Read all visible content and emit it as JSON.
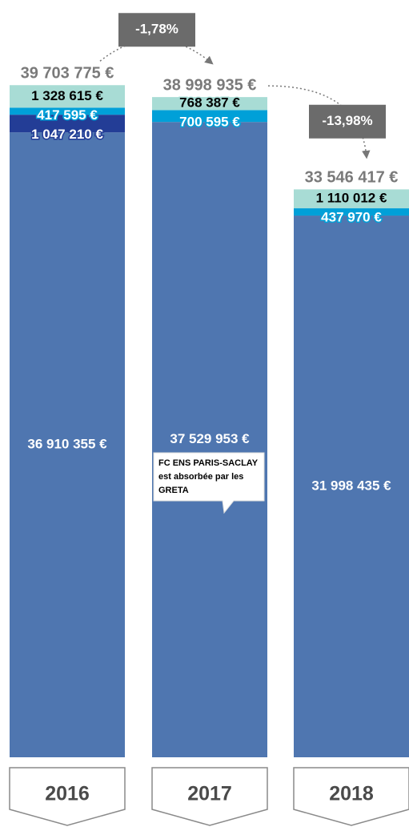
{
  "chart_data": {
    "type": "bar",
    "stacked": true,
    "categories": [
      "2016",
      "2017",
      "2018"
    ],
    "ylim": [
      0,
      40000000
    ],
    "series": [
      {
        "color": "#4f76b0",
        "values": [
          36910355,
          37529953,
          31998435
        ],
        "value_labels": [
          "36 910 355 €",
          "37 529 953 €",
          "31 998 435 €"
        ]
      },
      {
        "color": "#233d96",
        "values": [
          1047210,
          null,
          null
        ],
        "value_labels": [
          "1 047 210 €",
          null,
          null
        ]
      },
      {
        "color": "#00a0d8",
        "values": [
          417595,
          700595,
          437970
        ],
        "value_labels": [
          "417 595 €",
          "700 595 €",
          "437 970 €"
        ]
      },
      {
        "color": "#a8dcd5",
        "values": [
          1328615,
          768387,
          1110012
        ],
        "value_labels": [
          "1 328 615 €",
          "768 387 €",
          "1 110 012 €"
        ]
      }
    ],
    "totals": [
      39703775,
      38998935,
      33546417
    ],
    "total_labels": [
      "39 703 775 €",
      "38 998 935 €",
      "33 546 417 €"
    ],
    "changes": [
      "-1,78%",
      "-13,98%"
    ],
    "callout": [
      "FC ENS PARIS-SACLAY",
      "est absorbée par les",
      "GRETA"
    ]
  }
}
